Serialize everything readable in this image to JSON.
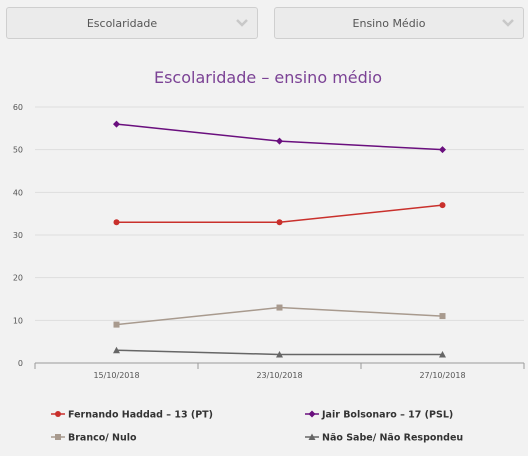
{
  "filters": {
    "category": {
      "value": "Escolaridade",
      "icon": "chevron-down-icon"
    },
    "level": {
      "value": "Ensino Médio",
      "icon": "chevron-down-icon"
    }
  },
  "chart_data": {
    "type": "line",
    "title": "Escolaridade – ensino médio",
    "categories": [
      "15/10/2018",
      "23/10/2018",
      "27/10/2018"
    ],
    "ylim": [
      0,
      60
    ],
    "yticks": [
      0,
      10,
      20,
      30,
      40,
      50,
      60
    ],
    "grid": true,
    "legend_position": "bottom",
    "series": [
      {
        "name": "Fernando Haddad – 13 (PT)",
        "values": [
          33,
          33,
          37
        ],
        "color": "#c9302c",
        "marker": "circle"
      },
      {
        "name": "Jair Bolsonaro – 17 (PSL)",
        "values": [
          56,
          52,
          50
        ],
        "color": "#6a0f7e",
        "marker": "diamond"
      },
      {
        "name": "Branco/ Nulo",
        "values": [
          9,
          13,
          11
        ],
        "color": "#a89a8e",
        "marker": "square"
      },
      {
        "name": "Não Sabe/ Não Respondeu",
        "values": [
          3,
          2,
          2
        ],
        "color": "#666666",
        "marker": "triangle"
      }
    ]
  }
}
